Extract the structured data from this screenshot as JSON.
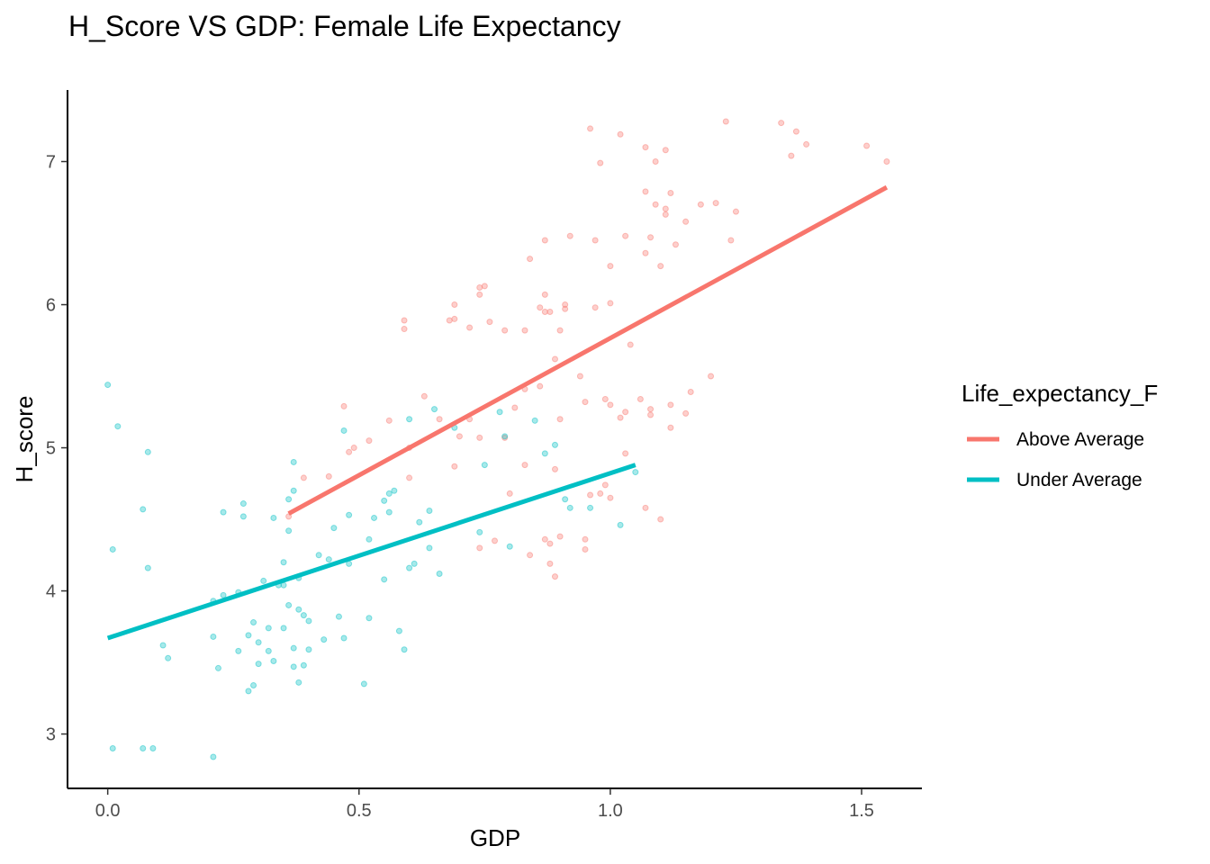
{
  "chart_data": {
    "type": "scatter",
    "title": "H_Score VS GDP: Female Life Expectancy",
    "xlabel": "GDP",
    "ylabel": "H_score",
    "xlim": [
      -0.08,
      1.62
    ],
    "ylim": [
      2.62,
      7.5
    ],
    "x_ticks": [
      {
        "value": 0,
        "label": "0.0"
      },
      {
        "value": 0.5,
        "label": "0.5"
      },
      {
        "value": 1,
        "label": "1.0"
      },
      {
        "value": 1.5,
        "label": "1.5"
      }
    ],
    "y_ticks": [
      {
        "value": 3,
        "label": "3"
      },
      {
        "value": 4,
        "label": "4"
      },
      {
        "value": 5,
        "label": "5"
      },
      {
        "value": 6,
        "label": "6"
      },
      {
        "value": 7,
        "label": "7"
      }
    ],
    "grid": false,
    "legend": {
      "title": "Life_expectancy_F",
      "placement": "right"
    },
    "series": [
      {
        "name": "Above Average",
        "color": "#F8766D",
        "points": [
          [
            0.36,
            4.52
          ],
          [
            0.39,
            4.79
          ],
          [
            0.44,
            4.8
          ],
          [
            0.47,
            5.29
          ],
          [
            0.48,
            4.97
          ],
          [
            0.49,
            5.0
          ],
          [
            0.52,
            5.05
          ],
          [
            0.56,
            5.19
          ],
          [
            0.59,
            5.83
          ],
          [
            0.59,
            5.89
          ],
          [
            0.6,
            4.79
          ],
          [
            0.6,
            5.0
          ],
          [
            0.63,
            5.36
          ],
          [
            0.66,
            5.2
          ],
          [
            0.68,
            5.89
          ],
          [
            0.69,
            5.9
          ],
          [
            0.69,
            6.0
          ],
          [
            0.7,
            5.08
          ],
          [
            0.69,
            4.87
          ],
          [
            0.72,
            5.84
          ],
          [
            0.72,
            5.2
          ],
          [
            0.74,
            6.07
          ],
          [
            0.74,
            6.12
          ],
          [
            0.75,
            6.13
          ],
          [
            0.76,
            5.88
          ],
          [
            0.74,
            5.07
          ],
          [
            0.77,
            4.35
          ],
          [
            0.74,
            4.3
          ],
          [
            0.79,
            5.07
          ],
          [
            0.79,
            5.82
          ],
          [
            0.8,
            4.68
          ],
          [
            0.81,
            5.28
          ],
          [
            0.83,
            5.82
          ],
          [
            0.83,
            5.41
          ],
          [
            0.83,
            4.88
          ],
          [
            0.84,
            4.25
          ],
          [
            0.84,
            6.32
          ],
          [
            0.86,
            5.43
          ],
          [
            0.86,
            5.98
          ],
          [
            0.87,
            5.95
          ],
          [
            0.87,
            6.07
          ],
          [
            0.87,
            6.45
          ],
          [
            0.87,
            4.36
          ],
          [
            0.88,
            4.33
          ],
          [
            0.88,
            4.19
          ],
          [
            0.88,
            5.95
          ],
          [
            0.89,
            4.85
          ],
          [
            0.89,
            5.62
          ],
          [
            0.89,
            4.1
          ],
          [
            0.9,
            4.38
          ],
          [
            0.9,
            5.82
          ],
          [
            0.9,
            5.2
          ],
          [
            0.91,
            6.0
          ],
          [
            0.91,
            5.97
          ],
          [
            0.92,
            6.48
          ],
          [
            0.94,
            5.5
          ],
          [
            0.95,
            5.32
          ],
          [
            0.95,
            4.29
          ],
          [
            0.95,
            4.36
          ],
          [
            0.96,
            4.67
          ],
          [
            0.96,
            7.23
          ],
          [
            0.97,
            6.45
          ],
          [
            0.97,
            5.98
          ],
          [
            0.98,
            6.99
          ],
          [
            0.98,
            4.68
          ],
          [
            0.99,
            5.34
          ],
          [
            0.99,
            4.74
          ],
          [
            1.0,
            6.27
          ],
          [
            1.0,
            5.3
          ],
          [
            1.0,
            4.65
          ],
          [
            1.0,
            6.01
          ],
          [
            1.02,
            5.21
          ],
          [
            1.02,
            7.19
          ],
          [
            1.03,
            5.25
          ],
          [
            1.03,
            6.48
          ],
          [
            1.03,
            4.96
          ],
          [
            1.04,
            5.72
          ],
          [
            1.06,
            5.34
          ],
          [
            1.07,
            7.1
          ],
          [
            1.07,
            6.79
          ],
          [
            1.07,
            6.36
          ],
          [
            1.07,
            4.58
          ],
          [
            1.08,
            5.23
          ],
          [
            1.08,
            5.27
          ],
          [
            1.08,
            6.47
          ],
          [
            1.09,
            7.0
          ],
          [
            1.09,
            6.7
          ],
          [
            1.1,
            6.27
          ],
          [
            1.1,
            4.5
          ],
          [
            1.11,
            6.67
          ],
          [
            1.11,
            6.63
          ],
          [
            1.11,
            7.08
          ],
          [
            1.12,
            6.78
          ],
          [
            1.12,
            5.14
          ],
          [
            1.12,
            5.3
          ],
          [
            1.13,
            6.42
          ],
          [
            1.15,
            5.24
          ],
          [
            1.15,
            6.58
          ],
          [
            1.16,
            5.39
          ],
          [
            1.18,
            6.7
          ],
          [
            1.2,
            5.5
          ],
          [
            1.21,
            6.71
          ],
          [
            1.23,
            7.28
          ],
          [
            1.24,
            6.45
          ],
          [
            1.25,
            6.65
          ],
          [
            1.34,
            7.27
          ],
          [
            1.36,
            7.04
          ],
          [
            1.37,
            7.21
          ],
          [
            1.39,
            7.12
          ],
          [
            1.51,
            7.11
          ],
          [
            1.55,
            7.0
          ]
        ],
        "fit": {
          "x": [
            0.36,
            1.55
          ],
          "y": [
            4.54,
            6.82
          ]
        }
      },
      {
        "name": "Under Average",
        "color": "#00BFC4",
        "points": [
          [
            0.0,
            5.44
          ],
          [
            0.01,
            2.9
          ],
          [
            0.01,
            4.29
          ],
          [
            0.02,
            5.15
          ],
          [
            0.07,
            4.57
          ],
          [
            0.07,
            2.9
          ],
          [
            0.08,
            4.97
          ],
          [
            0.08,
            4.16
          ],
          [
            0.09,
            2.9
          ],
          [
            0.11,
            3.62
          ],
          [
            0.12,
            3.53
          ],
          [
            0.21,
            3.93
          ],
          [
            0.21,
            3.68
          ],
          [
            0.21,
            2.84
          ],
          [
            0.22,
            3.46
          ],
          [
            0.23,
            4.55
          ],
          [
            0.23,
            3.97
          ],
          [
            0.26,
            3.99
          ],
          [
            0.26,
            3.58
          ],
          [
            0.27,
            4.52
          ],
          [
            0.27,
            4.61
          ],
          [
            0.28,
            3.69
          ],
          [
            0.28,
            3.3
          ],
          [
            0.29,
            3.78
          ],
          [
            0.29,
            3.34
          ],
          [
            0.3,
            3.64
          ],
          [
            0.3,
            3.49
          ],
          [
            0.31,
            4.07
          ],
          [
            0.32,
            3.74
          ],
          [
            0.32,
            3.58
          ],
          [
            0.33,
            3.51
          ],
          [
            0.33,
            4.51
          ],
          [
            0.34,
            4.04
          ],
          [
            0.35,
            4.2
          ],
          [
            0.35,
            3.74
          ],
          [
            0.35,
            4.04
          ],
          [
            0.36,
            4.64
          ],
          [
            0.36,
            4.42
          ],
          [
            0.36,
            3.9
          ],
          [
            0.37,
            4.7
          ],
          [
            0.37,
            3.6
          ],
          [
            0.37,
            3.47
          ],
          [
            0.37,
            4.9
          ],
          [
            0.38,
            3.87
          ],
          [
            0.38,
            3.36
          ],
          [
            0.38,
            4.09
          ],
          [
            0.39,
            3.48
          ],
          [
            0.39,
            3.83
          ],
          [
            0.4,
            3.79
          ],
          [
            0.4,
            3.59
          ],
          [
            0.42,
            4.25
          ],
          [
            0.43,
            3.66
          ],
          [
            0.44,
            4.22
          ],
          [
            0.45,
            4.44
          ],
          [
            0.46,
            3.82
          ],
          [
            0.47,
            3.67
          ],
          [
            0.47,
            5.12
          ],
          [
            0.48,
            4.53
          ],
          [
            0.48,
            4.19
          ],
          [
            0.51,
            3.35
          ],
          [
            0.52,
            4.36
          ],
          [
            0.52,
            3.81
          ],
          [
            0.53,
            4.51
          ],
          [
            0.55,
            4.08
          ],
          [
            0.55,
            4.63
          ],
          [
            0.56,
            4.55
          ],
          [
            0.56,
            4.68
          ],
          [
            0.57,
            4.7
          ],
          [
            0.58,
            3.72
          ],
          [
            0.59,
            3.59
          ],
          [
            0.6,
            5.2
          ],
          [
            0.6,
            4.16
          ],
          [
            0.61,
            4.19
          ],
          [
            0.62,
            4.48
          ],
          [
            0.64,
            4.3
          ],
          [
            0.64,
            4.56
          ],
          [
            0.65,
            5.27
          ],
          [
            0.66,
            4.12
          ],
          [
            0.69,
            5.14
          ],
          [
            0.74,
            4.41
          ],
          [
            0.75,
            4.88
          ],
          [
            0.78,
            5.25
          ],
          [
            0.79,
            5.08
          ],
          [
            0.8,
            4.31
          ],
          [
            0.85,
            5.19
          ],
          [
            0.87,
            4.96
          ],
          [
            0.89,
            5.02
          ],
          [
            0.91,
            4.64
          ],
          [
            0.92,
            4.58
          ],
          [
            0.96,
            4.58
          ],
          [
            1.02,
            4.46
          ],
          [
            1.05,
            4.83
          ]
        ],
        "fit": {
          "x": [
            0.0,
            1.05
          ],
          "y": [
            3.67,
            4.88
          ]
        }
      }
    ]
  }
}
